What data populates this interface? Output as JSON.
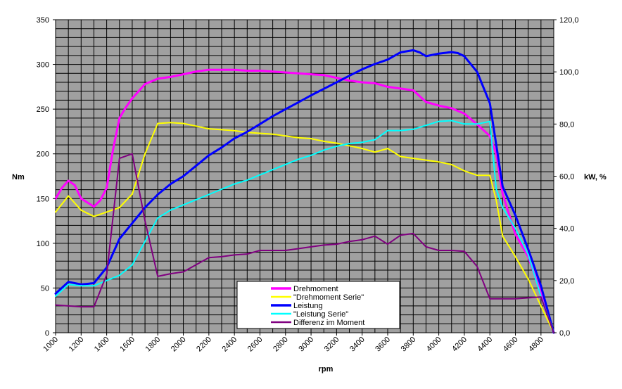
{
  "chart_data": {
    "type": "line",
    "title": "",
    "xlabel": "rpm",
    "ylabel_left": "Nm",
    "ylabel_right": "kW, %",
    "xlim": [
      1000,
      4900
    ],
    "ylim_left": [
      0,
      350
    ],
    "ylim_right": [
      0,
      120
    ],
    "x_ticks": [
      "1000",
      "1200",
      "1400",
      "1600",
      "1800",
      "2000",
      "2200",
      "2400",
      "2600",
      "2800",
      "3000",
      "3200",
      "3400",
      "3600",
      "3800",
      "4000",
      "4200",
      "4400",
      "4600",
      "4800"
    ],
    "y_ticks_left": [
      "0",
      "50",
      "100",
      "150",
      "200",
      "250",
      "300",
      "350"
    ],
    "y_ticks_right": [
      "0,0",
      "20,0",
      "40,0",
      "60,0",
      "80,0",
      "100,0",
      "120,0"
    ],
    "grid": true,
    "plot_background": "#a0a0a0",
    "legend_position": "bottom-center",
    "series": [
      {
        "name": "Drehmoment",
        "axis": "left",
        "color": "#ff00ff",
        "width": 3,
        "x": [
          1000,
          1050,
          1100,
          1150,
          1200,
          1300,
          1350,
          1400,
          1450,
          1500,
          1550,
          1600,
          1700,
          1800,
          1900,
          2000,
          2100,
          2200,
          2300,
          2400,
          2500,
          2600,
          2700,
          2800,
          2900,
          3000,
          3100,
          3200,
          3300,
          3400,
          3500,
          3600,
          3700,
          3800,
          3900,
          4000,
          4100,
          4200,
          4300,
          4400,
          4450,
          4500,
          4600,
          4700,
          4800,
          4900
        ],
        "y": [
          150,
          162,
          170,
          165,
          150,
          141,
          148,
          162,
          205,
          240,
          252,
          262,
          278,
          284,
          286,
          289,
          292,
          294,
          294,
          294,
          293,
          293,
          292,
          291,
          290,
          289,
          288,
          285,
          282,
          280,
          279,
          275,
          273,
          271,
          258,
          254,
          251,
          245,
          233,
          220,
          200,
          155,
          110,
          85,
          45,
          0
        ]
      },
      {
        "name": "\"Drehmoment Serie\"",
        "axis": "left",
        "color": "#ffff00",
        "width": 2,
        "x": [
          1000,
          1100,
          1200,
          1300,
          1400,
          1500,
          1600,
          1700,
          1800,
          1900,
          2000,
          2100,
          2200,
          2300,
          2400,
          2500,
          2600,
          2700,
          2800,
          2900,
          3000,
          3100,
          3200,
          3300,
          3400,
          3500,
          3600,
          3700,
          3800,
          3900,
          4000,
          4100,
          4200,
          4300,
          4400,
          4450,
          4500,
          4600,
          4700,
          4800,
          4900
        ],
        "y": [
          135,
          153,
          137,
          130,
          135,
          140,
          155,
          200,
          234,
          235,
          234,
          231,
          228,
          227,
          226,
          224,
          223,
          222,
          220,
          218,
          217,
          214,
          212,
          209,
          206,
          202,
          206,
          197,
          195,
          193,
          191,
          188,
          181,
          176,
          176,
          148,
          108,
          85,
          60,
          30,
          0
        ]
      },
      {
        "name": "Leistung",
        "axis": "right",
        "color": "#0000ff",
        "width": 3,
        "x": [
          1000,
          1100,
          1200,
          1300,
          1400,
          1500,
          1600,
          1700,
          1800,
          1900,
          2000,
          2100,
          2200,
          2300,
          2400,
          2500,
          2600,
          2700,
          2800,
          2900,
          3000,
          3100,
          3200,
          3300,
          3400,
          3500,
          3600,
          3700,
          3800,
          3850,
          3900,
          4000,
          4100,
          4150,
          4200,
          4300,
          4400,
          4450,
          4500,
          4600,
          4700,
          4800,
          4900
        ],
        "y": [
          15,
          19.5,
          18.5,
          19,
          25,
          36,
          42,
          48,
          53,
          57,
          60,
          64,
          68,
          71,
          74.5,
          77,
          80,
          83,
          85.7,
          88.3,
          91,
          93.5,
          96,
          98.5,
          101,
          103,
          104.7,
          107.5,
          108.3,
          107.5,
          106,
          107,
          107.6,
          107.2,
          106,
          100,
          88,
          72,
          56,
          45,
          32,
          18,
          0
        ]
      },
      {
        "name": "\"Leistung Serie\"",
        "axis": "right",
        "color": "#00ffff",
        "width": 2,
        "x": [
          1000,
          1100,
          1200,
          1300,
          1400,
          1500,
          1600,
          1700,
          1800,
          1900,
          2000,
          2100,
          2200,
          2300,
          2400,
          2500,
          2600,
          2700,
          2800,
          2900,
          3000,
          3100,
          3200,
          3300,
          3400,
          3500,
          3600,
          3700,
          3800,
          3900,
          4000,
          4100,
          4200,
          4300,
          4400,
          4450,
          4500,
          4600,
          4700,
          4800,
          4900
        ],
        "y": [
          14,
          18.5,
          18,
          18,
          20,
          22,
          26,
          35,
          44,
          47,
          49,
          51,
          53,
          55,
          57,
          58.5,
          60.5,
          62.5,
          64.5,
          66.5,
          68,
          70,
          71.5,
          72.5,
          73,
          74,
          77.5,
          77.5,
          78,
          79.5,
          81,
          81.3,
          80,
          80,
          81,
          55,
          48,
          40,
          30,
          14,
          0
        ]
      },
      {
        "name": "Differenz im Moment",
        "axis": "left",
        "color": "#800080",
        "width": 2,
        "x": [
          1000,
          1100,
          1200,
          1300,
          1400,
          1500,
          1600,
          1700,
          1800,
          1900,
          2000,
          2100,
          2200,
          2300,
          2400,
          2500,
          2600,
          2700,
          2800,
          2900,
          3000,
          3100,
          3200,
          3300,
          3400,
          3500,
          3600,
          3700,
          3800,
          3900,
          4000,
          4100,
          4200,
          4300,
          4400,
          4500,
          4600,
          4700,
          4800,
          4900
        ],
        "y": [
          31,
          30,
          29,
          29,
          65,
          195,
          200,
          125,
          63,
          66,
          68,
          76,
          84,
          85,
          87,
          88,
          92,
          92,
          92,
          94,
          96,
          98,
          99,
          102,
          104,
          108,
          99,
          109,
          111,
          96,
          92,
          92,
          91,
          74,
          38,
          38,
          38,
          39,
          40,
          0
        ]
      }
    ]
  }
}
